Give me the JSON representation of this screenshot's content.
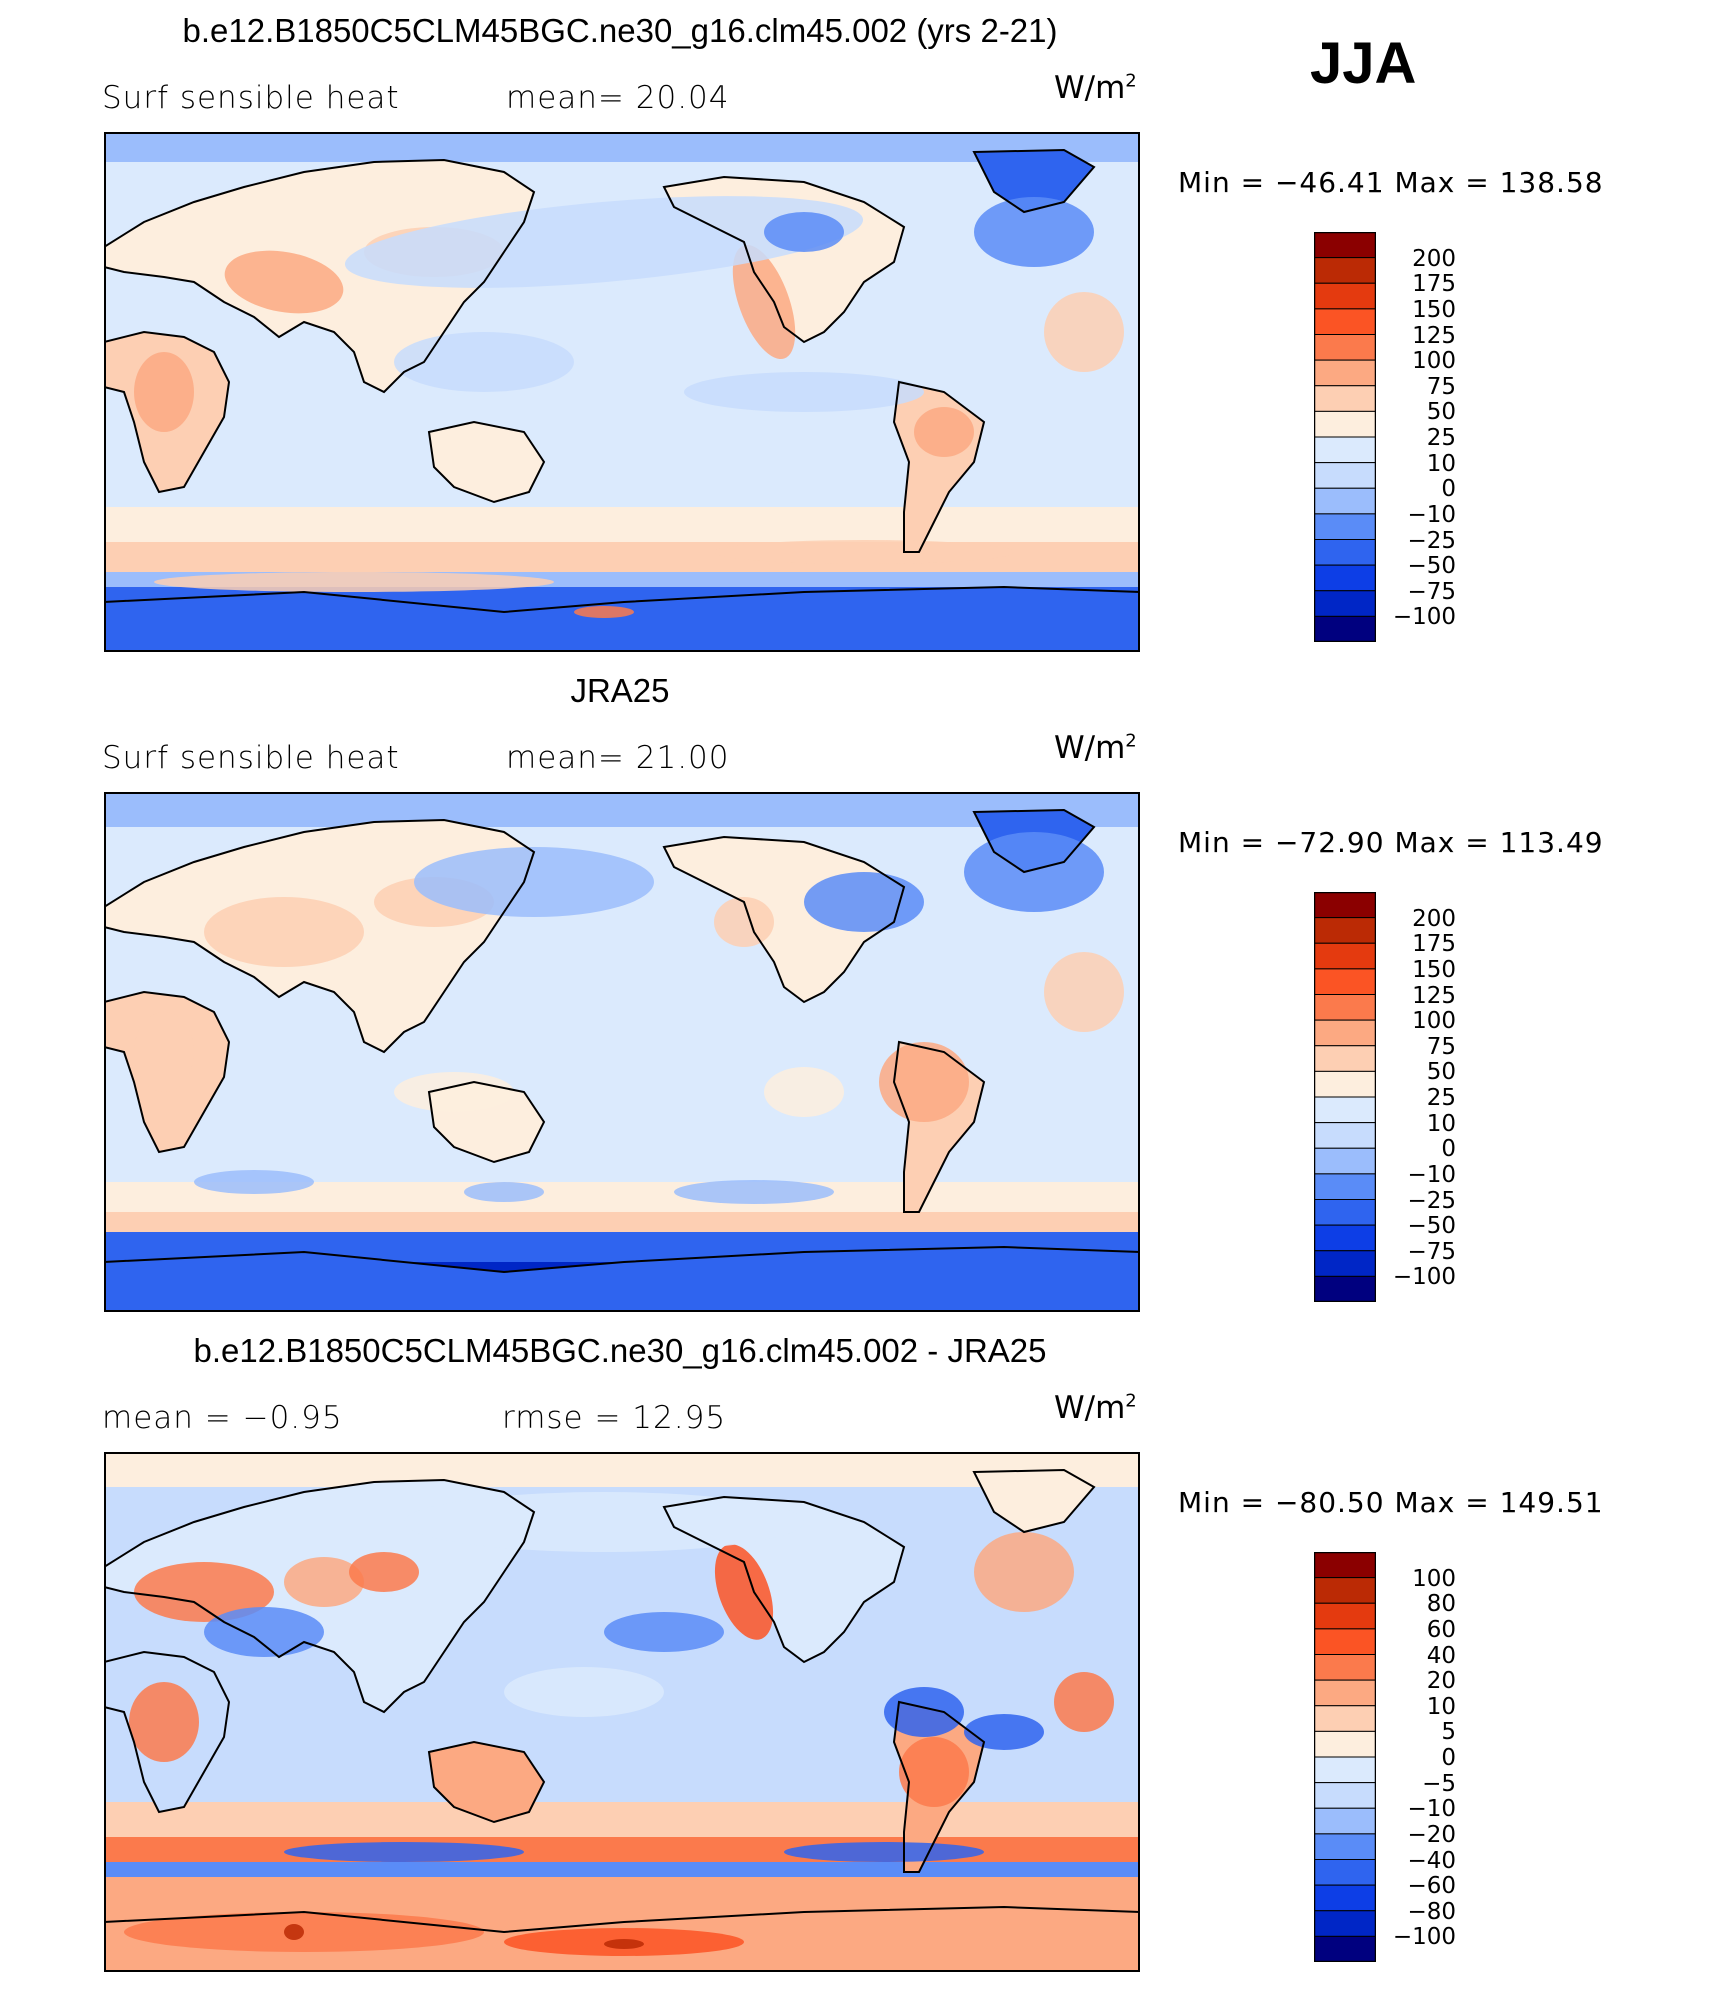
{
  "season": "JJA",
  "colors": {
    "land_outline": "#000000",
    "diverging_blue_to_red": [
      "#00007f",
      "#0a1a8f",
      "#0026c6",
      "#0d3ee6",
      "#2f64ef",
      "#5a8cf7",
      "#9bbdfc",
      "#c7dcfd",
      "#dbeafd",
      "#fdeede",
      "#fdcfb3",
      "#fca982",
      "#fb7a4c",
      "#fb5424",
      "#e43a0f",
      "#bb2a05",
      "#8b0000"
    ]
  },
  "panels": [
    {
      "title": "b.e12.B1850C5CLM45BGC.ne30_g16.clm45.002 (yrs 2-21)",
      "left_label": "Surf  sensible  heat",
      "center_label": "mean=   20.04",
      "unit": "W/m",
      "unit_sup": "2",
      "minmax": "Min  =  −46.41  Max  =  138.58",
      "colorbar_levels": [
        "200",
        "175",
        "150",
        "125",
        "100",
        "75",
        "50",
        "25",
        "10",
        "0",
        "−10",
        "−25",
        "−50",
        "−75",
        "−100"
      ],
      "pattern": "model"
    },
    {
      "title": "JRA25",
      "left_label": "Surf  sensible  heat",
      "center_label": "mean=   21.00",
      "unit": "W/m",
      "unit_sup": "2",
      "minmax": "Min  =  −72.90  Max  =  113.49",
      "colorbar_levels": [
        "200",
        "175",
        "150",
        "125",
        "100",
        "75",
        "50",
        "25",
        "10",
        "0",
        "−10",
        "−25",
        "−50",
        "−75",
        "−100"
      ],
      "pattern": "obs"
    },
    {
      "title": "b.e12.B1850C5CLM45BGC.ne30_g16.clm45.002 - JRA25",
      "left_label": "mean  =    −0.95",
      "center_label": "rmse  =    12.95",
      "unit": "W/m",
      "unit_sup": "2",
      "minmax": "Min  =  −80.50  Max  =  149.51",
      "colorbar_levels": [
        "100",
        "80",
        "60",
        "40",
        "20",
        "10",
        "5",
        "0",
        "−5",
        "−10",
        "−20",
        "−40",
        "−60",
        "−80",
        "−100"
      ],
      "pattern": "diff"
    }
  ]
}
